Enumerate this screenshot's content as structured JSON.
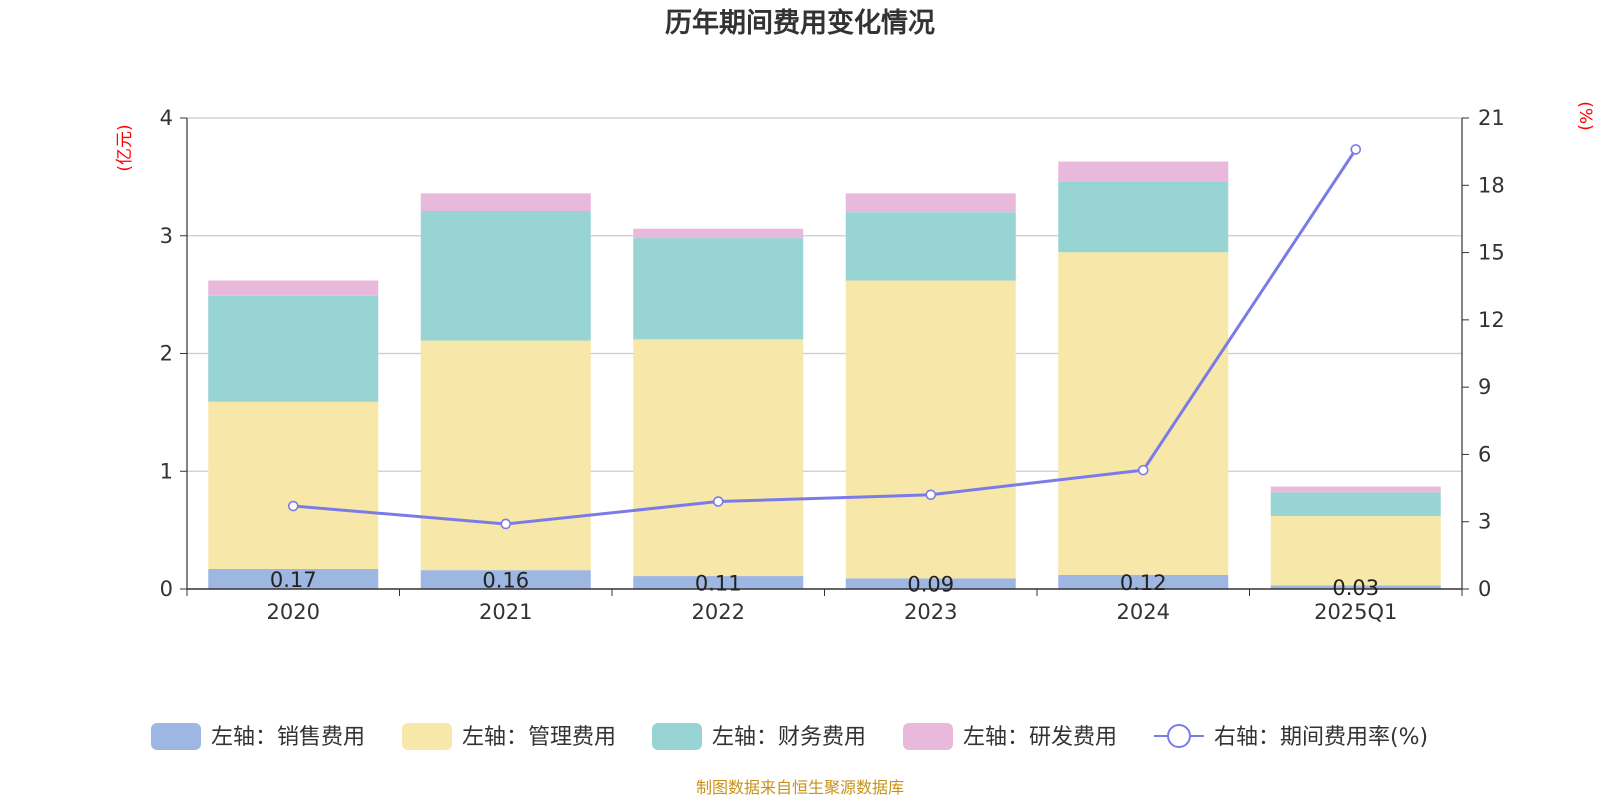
{
  "chart_data": {
    "type": "bar",
    "stacked": true,
    "title": "历年期间费用变化情况",
    "categories": [
      "2020",
      "2021",
      "2022",
      "2023",
      "2024",
      "2025Q1"
    ],
    "left_axis": {
      "unit": "(亿元)",
      "ylim": [
        0,
        4
      ],
      "ticks": [
        0,
        1,
        2,
        3,
        4
      ]
    },
    "right_axis": {
      "unit": "(%)",
      "ylim": [
        0,
        21
      ],
      "ticks": [
        0,
        3,
        6,
        9,
        12,
        15,
        18,
        21
      ]
    },
    "series": [
      {
        "name": "左轴：销售费用",
        "axis": "left",
        "color": "#9db6e2",
        "values": [
          0.17,
          0.16,
          0.11,
          0.09,
          0.12,
          0.03
        ],
        "labels": [
          "0.17",
          "0.16",
          "0.11",
          "0.09",
          "0.12",
          "0.03"
        ]
      },
      {
        "name": "左轴：管理费用",
        "axis": "left",
        "color": "#f7e7a8",
        "values": [
          1.42,
          1.95,
          2.01,
          2.53,
          2.74,
          0.59
        ]
      },
      {
        "name": "左轴：财务费用",
        "axis": "left",
        "color": "#98d4d4",
        "values": [
          0.9,
          1.1,
          0.86,
          0.58,
          0.6,
          0.2
        ]
      },
      {
        "name": "左轴：研发费用",
        "axis": "left",
        "color": "#e8b9da",
        "values": [
          0.13,
          0.15,
          0.08,
          0.16,
          0.17,
          0.05
        ]
      }
    ],
    "line_series": {
      "name": "右轴：期间费用率(%)",
      "axis": "right",
      "type": "line",
      "color": "#7b7be8",
      "values": [
        3.7,
        2.9,
        3.9,
        4.2,
        5.3,
        19.6
      ]
    },
    "legend_position": "bottom",
    "grid": true
  },
  "footer": {
    "source": "制图数据来自恒生聚源数据库"
  }
}
